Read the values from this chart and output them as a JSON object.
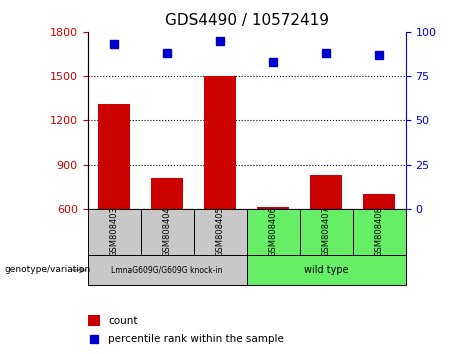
{
  "title": "GDS4490 / 10572419",
  "samples": [
    "GSM808403",
    "GSM808404",
    "GSM808405",
    "GSM808406",
    "GSM808407",
    "GSM808408"
  ],
  "counts": [
    1310,
    810,
    1500,
    615,
    830,
    700
  ],
  "percentile_ranks": [
    93,
    88,
    95,
    83,
    88,
    87
  ],
  "ylim_left": [
    600,
    1800
  ],
  "yticks_left": [
    600,
    900,
    1200,
    1500,
    1800
  ],
  "ylim_right": [
    0,
    100
  ],
  "yticks_right": [
    0,
    25,
    50,
    75,
    100
  ],
  "bar_color": "#cc0000",
  "dot_color": "#0000cc",
  "group1_label": "LmnaG609G/G609G knock-in",
  "group2_label": "wild type",
  "group1_indices": [
    0,
    1,
    2
  ],
  "group2_indices": [
    3,
    4,
    5
  ],
  "group1_bg": "#c8c8c8",
  "group2_bg": "#66ee66",
  "legend_count_label": "count",
  "legend_pct_label": "percentile rank within the sample",
  "xlabel_label": "genotype/variation",
  "bar_bottom": 600,
  "grid_yticks": [
    900,
    1200,
    1500
  ]
}
